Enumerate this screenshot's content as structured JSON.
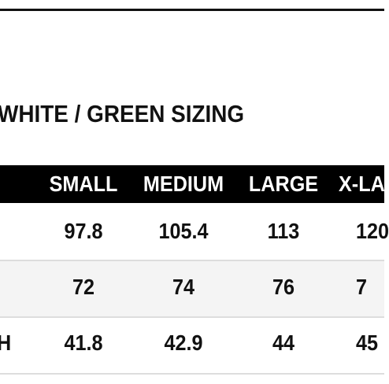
{
  "title": "WHITE / GREEN SIZING",
  "table": {
    "header": [
      "SMALL",
      "MEDIUM",
      "LARGE",
      "X-LA"
    ],
    "rows": [
      {
        "cells": [
          "97.8",
          "105.4",
          "113",
          "120"
        ]
      },
      {
        "cells": [
          "72",
          "74",
          "76",
          "7"
        ]
      },
      {
        "label": "H",
        "cells": [
          "41.8",
          "42.9",
          "44",
          "45"
        ]
      }
    ]
  }
}
